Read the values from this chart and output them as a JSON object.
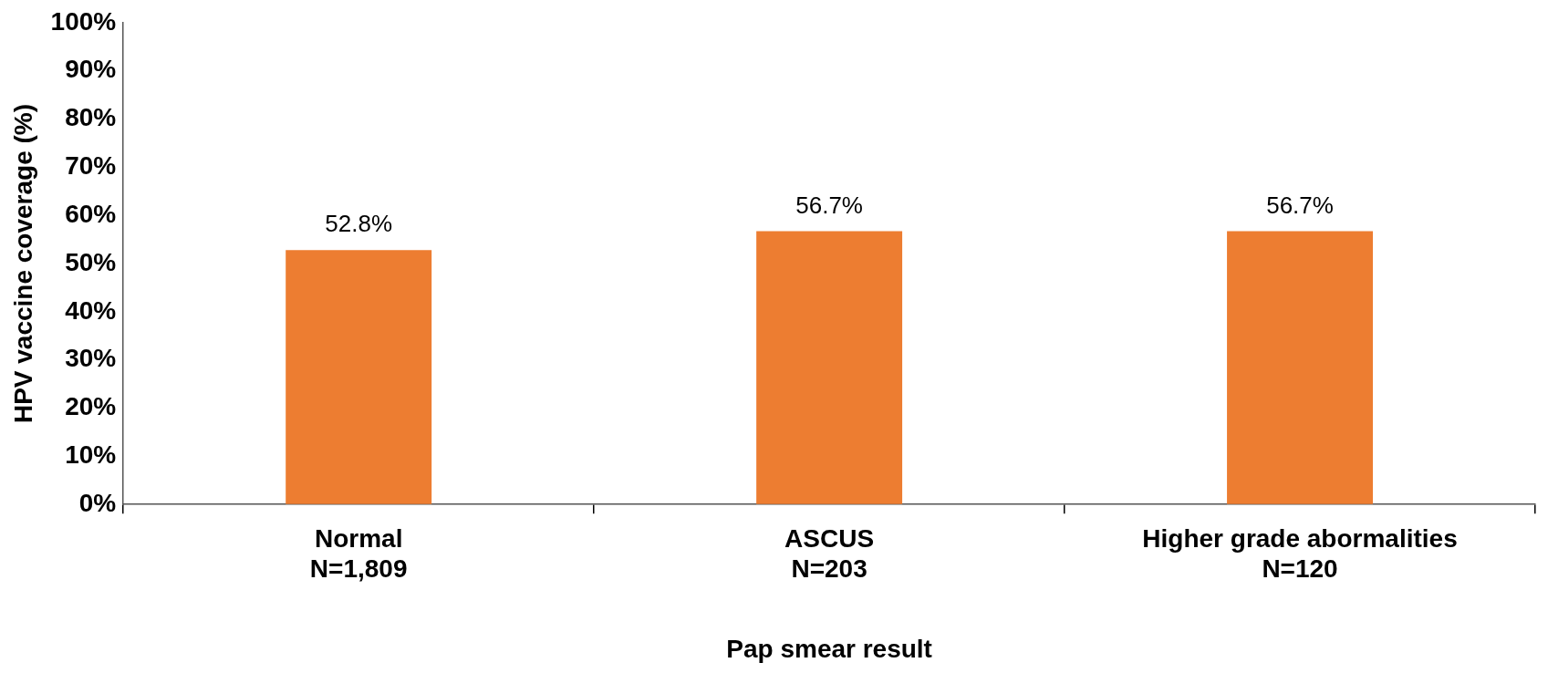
{
  "chart_data": {
    "type": "bar",
    "xlabel": "Pap smear result",
    "ylabel": "HPV vaccine coverage (%)",
    "categories": [
      "Normal\nN=1,809",
      "ASCUS\nN=203",
      "Higher grade abormalities\nN=120"
    ],
    "values": [
      52.8,
      56.7,
      56.7
    ],
    "color": "#ed7d31",
    "value_labels": [
      "52.8%",
      "56.7%",
      "56.7%"
    ],
    "ylim": [
      0,
      100
    ],
    "yticks": [
      {
        "value": 0,
        "label": "0%"
      },
      {
        "value": 10,
        "label": "10%"
      },
      {
        "value": 20,
        "label": "20%"
      },
      {
        "value": 30,
        "label": "30%"
      },
      {
        "value": 40,
        "label": "40%"
      },
      {
        "value": 50,
        "label": "50%"
      },
      {
        "value": 60,
        "label": "60%"
      },
      {
        "value": 70,
        "label": "70%"
      },
      {
        "value": 80,
        "label": "80%"
      },
      {
        "value": 90,
        "label": "90%"
      },
      {
        "value": 100,
        "label": "100%"
      }
    ],
    "grid": false,
    "legend": false
  }
}
